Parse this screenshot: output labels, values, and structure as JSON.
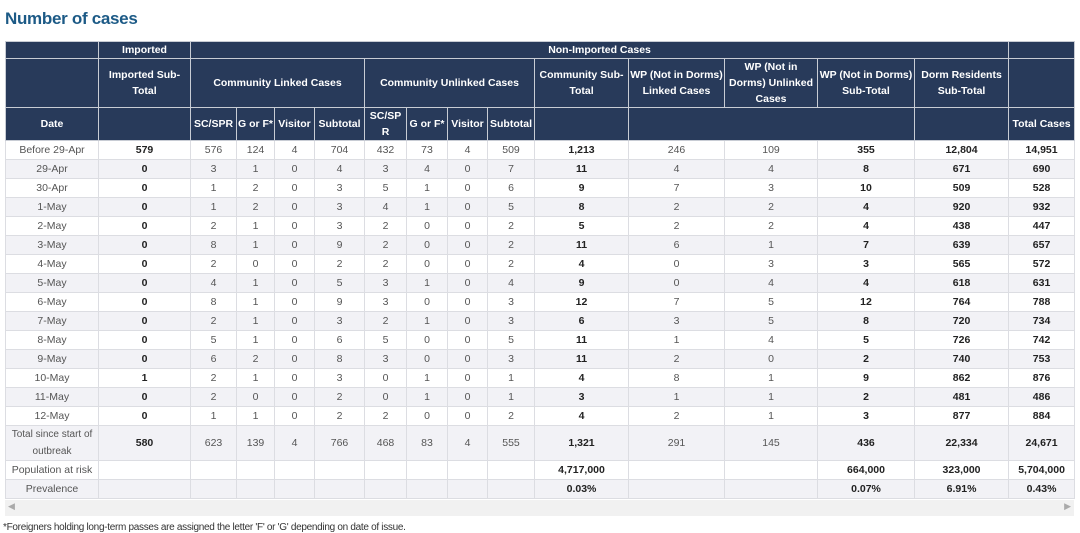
{
  "title": "Number of cases",
  "header": {
    "imported": "Imported",
    "non_imported": "Non-Imported Cases",
    "imported_subtotal": "Imported Sub-Total",
    "community_linked": "Community Linked Cases",
    "community_unlinked": "Community Unlinked Cases",
    "community_subtotal": "Community Sub-Total",
    "wp_linked": "WP (Not in Dorms) Linked Cases",
    "wp_unlinked": "WP (Not in Dorms) Unlinked Cases",
    "wp_subtotal": "WP (Not in Dorms) Sub-Total",
    "dorm_subtotal": "Dorm Residents Sub-Total",
    "date": "Date",
    "sub": [
      "SC/SPR",
      "G or F*",
      "Visitor",
      "Subtotal",
      "SC/SPR",
      "G or F*",
      "Visitor",
      "Subtotal"
    ],
    "total_cases": "Total Cases"
  },
  "rows": [
    [
      "Before 29-Apr",
      "579",
      "576",
      "124",
      "4",
      "704",
      "432",
      "73",
      "4",
      "509",
      "1,213",
      "246",
      "109",
      "355",
      "12,804",
      "14,951"
    ],
    [
      "29-Apr",
      "0",
      "3",
      "1",
      "0",
      "4",
      "3",
      "4",
      "0",
      "7",
      "11",
      "4",
      "4",
      "8",
      "671",
      "690"
    ],
    [
      "30-Apr",
      "0",
      "1",
      "2",
      "0",
      "3",
      "5",
      "1",
      "0",
      "6",
      "9",
      "7",
      "3",
      "10",
      "509",
      "528"
    ],
    [
      "1-May",
      "0",
      "1",
      "2",
      "0",
      "3",
      "4",
      "1",
      "0",
      "5",
      "8",
      "2",
      "2",
      "4",
      "920",
      "932"
    ],
    [
      "2-May",
      "0",
      "2",
      "1",
      "0",
      "3",
      "2",
      "0",
      "0",
      "2",
      "5",
      "2",
      "2",
      "4",
      "438",
      "447"
    ],
    [
      "3-May",
      "0",
      "8",
      "1",
      "0",
      "9",
      "2",
      "0",
      "0",
      "2",
      "11",
      "6",
      "1",
      "7",
      "639",
      "657"
    ],
    [
      "4-May",
      "0",
      "2",
      "0",
      "0",
      "2",
      "2",
      "0",
      "0",
      "2",
      "4",
      "0",
      "3",
      "3",
      "565",
      "572"
    ],
    [
      "5-May",
      "0",
      "4",
      "1",
      "0",
      "5",
      "3",
      "1",
      "0",
      "4",
      "9",
      "0",
      "4",
      "4",
      "618",
      "631"
    ],
    [
      "6-May",
      "0",
      "8",
      "1",
      "0",
      "9",
      "3",
      "0",
      "0",
      "3",
      "12",
      "7",
      "5",
      "12",
      "764",
      "788"
    ],
    [
      "7-May",
      "0",
      "2",
      "1",
      "0",
      "3",
      "2",
      "1",
      "0",
      "3",
      "6",
      "3",
      "5",
      "8",
      "720",
      "734"
    ],
    [
      "8-May",
      "0",
      "5",
      "1",
      "0",
      "6",
      "5",
      "0",
      "0",
      "5",
      "11",
      "1",
      "4",
      "5",
      "726",
      "742"
    ],
    [
      "9-May",
      "0",
      "6",
      "2",
      "0",
      "8",
      "3",
      "0",
      "0",
      "3",
      "11",
      "2",
      "0",
      "2",
      "740",
      "753"
    ],
    [
      "10-May",
      "1",
      "2",
      "1",
      "0",
      "3",
      "0",
      "1",
      "0",
      "1",
      "4",
      "8",
      "1",
      "9",
      "862",
      "876"
    ],
    [
      "11-May",
      "0",
      "2",
      "0",
      "0",
      "2",
      "0",
      "1",
      "0",
      "1",
      "3",
      "1",
      "1",
      "2",
      "481",
      "486"
    ],
    [
      "12-May",
      "0",
      "1",
      "1",
      "0",
      "2",
      "2",
      "0",
      "0",
      "2",
      "4",
      "2",
      "1",
      "3",
      "877",
      "884"
    ],
    [
      "Total since start of outbreak",
      "580",
      "623",
      "139",
      "4",
      "766",
      "468",
      "83",
      "4",
      "555",
      "1,321",
      "291",
      "145",
      "436",
      "22,334",
      "24,671"
    ],
    [
      "Population at risk",
      "",
      "",
      "",
      "",
      "",
      "",
      "",
      "",
      "",
      "4,717,000",
      "",
      "",
      "664,000",
      "323,000",
      "5,704,000"
    ],
    [
      "Prevalence",
      "",
      "",
      "",
      "",
      "",
      "",
      "",
      "",
      "",
      "0.03%",
      "",
      "",
      "0.07%",
      "6.91%",
      "0.43%"
    ]
  ],
  "footnote": "*Foreigners holding long-term passes are assigned the letter 'F' or 'G' depending on date of issue.",
  "colors": {
    "title": "#1c5a86",
    "header_bg": "#283a5a"
  }
}
